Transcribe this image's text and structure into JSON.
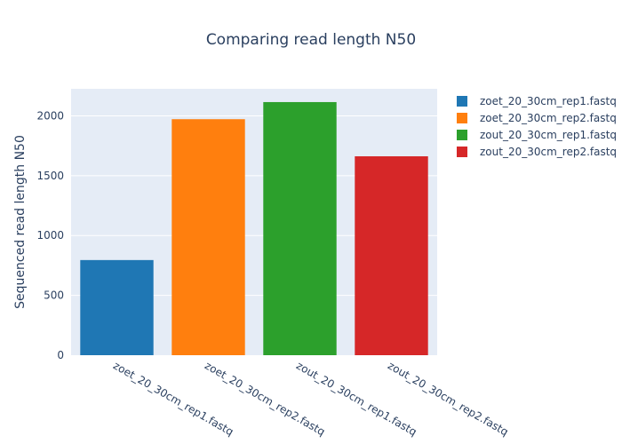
{
  "chart_data": {
    "type": "bar",
    "title": "Comparing read length N50",
    "xlabel": "",
    "ylabel": "Sequenced read length N50",
    "categories": [
      "zoet_20_30cm_rep1.fastq",
      "zoet_20_30cm_rep2.fastq",
      "zout_20_30cm_rep1.fastq",
      "zout_20_30cm_rep2.fastq"
    ],
    "values": [
      795,
      1972,
      2115,
      1662
    ],
    "colors": [
      "#1f77b4",
      "#ff7f0e",
      "#2ca02c",
      "#d62728"
    ],
    "ylim": [
      0,
      2226
    ],
    "yticks": [
      0,
      500,
      1000,
      1500,
      2000
    ],
    "grid": true,
    "legend": {
      "position": "top-right",
      "entries": [
        "zoet_20_30cm_rep1.fastq",
        "zoet_20_30cm_rep2.fastq",
        "zout_20_30cm_rep1.fastq",
        "zout_20_30cm_rep2.fastq"
      ]
    },
    "plot_background": "#e5ecf6"
  }
}
